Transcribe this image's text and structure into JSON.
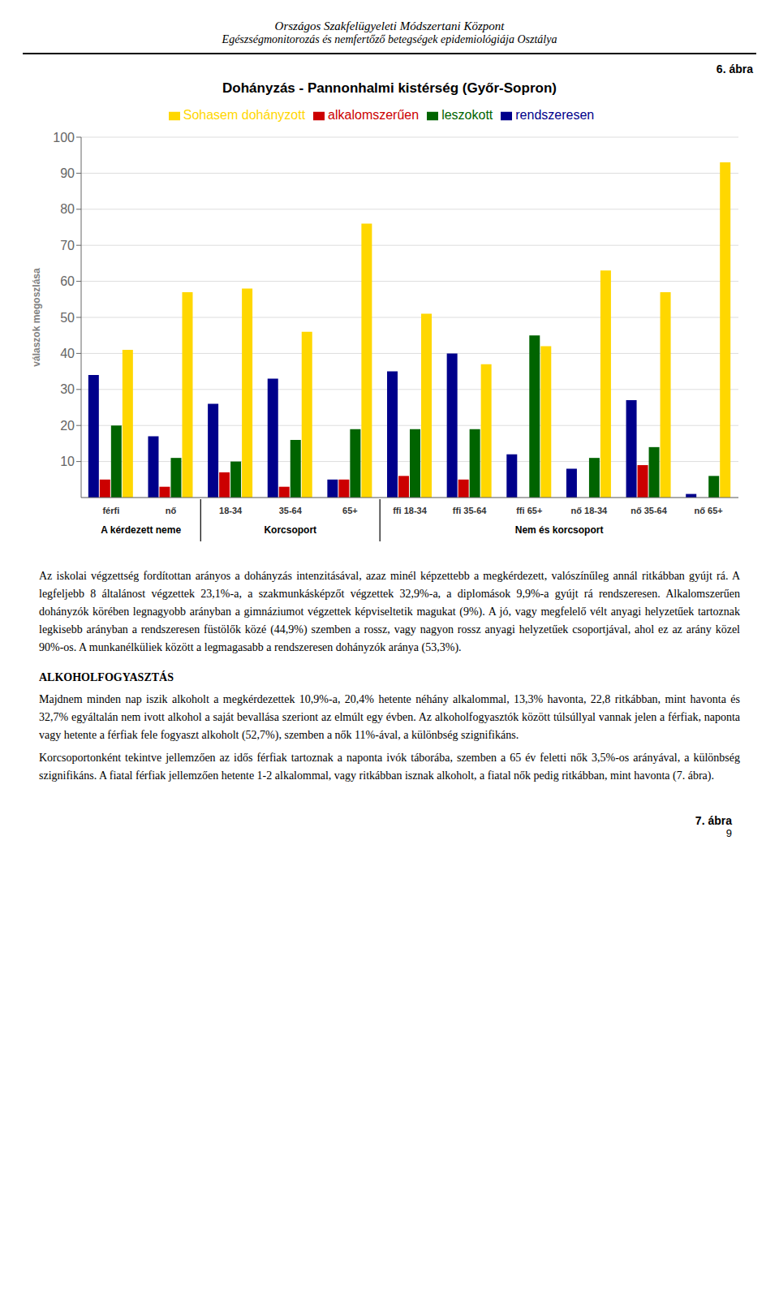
{
  "chart_data": {
    "type": "bar",
    "title": "Dohányzás - Pannonhalmi kistérség (Győr-Sopron)",
    "y_label": "válaszok megoszlása",
    "categories": [
      "férfi",
      "nő",
      "18-34",
      "35-64",
      "65+",
      "ffi 18-34",
      "ffi 35-64",
      "ffi 65+",
      "nő 18-34",
      "nő 35-64",
      "nő 65+"
    ],
    "groups": [
      {
        "name": "A kérdezett neme",
        "categories": [
          "férfi",
          "nő"
        ]
      },
      {
        "name": "Korcsoport",
        "categories": [
          "18-34",
          "35-64",
          "65+"
        ]
      },
      {
        "name": "Nem és korcsoport",
        "categories": [
          "ffi 18-34",
          "ffi 35-64",
          "ffi 65+",
          "nő 18-34",
          "nő 35-64",
          "nő 65+"
        ]
      }
    ],
    "series": [
      {
        "name": "rendszeresen",
        "color": "#00008B",
        "values": [
          34,
          17,
          26,
          33,
          5,
          35,
          40,
          12,
          8,
          27,
          1
        ]
      },
      {
        "name": "alkalomszerűen",
        "color": "#CC0000",
        "values": [
          5,
          3,
          7,
          3,
          5,
          6,
          5,
          0,
          0,
          9,
          0
        ]
      },
      {
        "name": "leszokott",
        "color": "#006400",
        "values": [
          20,
          11,
          10,
          16,
          19,
          19,
          19,
          45,
          11,
          14,
          6
        ]
      },
      {
        "name": "Sohasem dohányzott",
        "color": "#FFD700",
        "values": [
          41,
          57,
          58,
          46,
          76,
          51,
          37,
          42,
          63,
          57,
          93
        ]
      }
    ],
    "ylim": [
      0,
      100
    ],
    "yticks": [
      10,
      20,
      30,
      40,
      50,
      60,
      70,
      80,
      90,
      100
    ],
    "grid": true,
    "legend": "top",
    "annotations": [
      "Országos Szakfelügyeleti Módszertani Központ",
      "Egészségmonitorozás és nemfertőző betegségek epidemiológiája Osztálya",
      "6. ábra",
      "Az iskolai végzettség fordítottan arányos a dohányzás intenzitásával, azaz minél képzettebb a megkérdezett, valószínűleg annál ritkábban gyújt rá. A legfeljebb 8 általánost végzettek 23,1%-a, a szakmunkásképzőt végzettek 32,9%-a, a diplomások 9,9%-a gyújt rá rendszeresen. Alkalomszerűen dohányzók körében legnagyobb arányban a gimnáziumot végzettek képviseltetik magukat (9%). A jó, vagy megfelelő vélt anyagi helyzetűek tartoznak legkisebb arányban a rendszeresen füstölők közé (44,9%) szemben a rossz, vagy nagyon rossz anyagi helyzetűek csoportjával, ahol ez az arány közel 90%-os. A munkanélküliek között a legmagasabb a rendszeresen dohányzók aránya (53,3%).",
      "ALKOHOLFOGYASZTÁS",
      "Majdnem minden nap iszik alkoholt a megkérdezettek 10,9%-a, 20,4% hetente néhány alkalommal, 13,3% havonta, 22,8 ritkábban, mint havonta és 32,7% egyáltalán nem ivott alkohol a saját bevallása szeriont az elmúlt egy évben. Az alkoholfogyasztók között túlsúllyal vannak jelen a férfiak, naponta vagy hetente a férfiak fele fogyaszt alkoholt (52,7%), szemben a nők 11%-ával, a különbség szignifikáns.",
      "Korcsoportonként tekintve jellemzően az idős férfiak tartoznak a naponta ivók táborába, szemben a 65 év feletti nők 3,5%-os arányával, a különbség szignifikáns. A fiatal férfiak jellemzően hetente 1-2 alkalommal, vagy ritkábban isznak alkoholt, a fiatal nők pedig ritkábban, mint havonta (7. ábra).",
      "7. ábra",
      "9"
    ]
  }
}
